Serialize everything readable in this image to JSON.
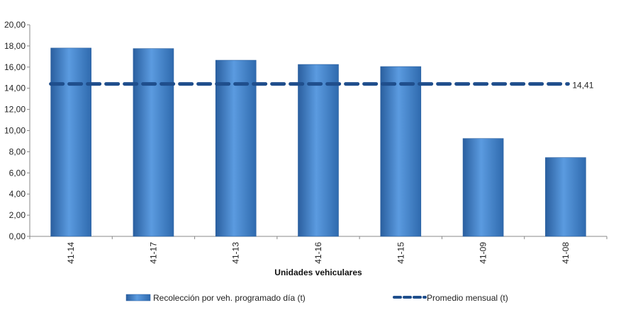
{
  "chart_data": {
    "type": "bar",
    "categories": [
      "41-14",
      "41-17",
      "41-13",
      "41-16",
      "41-15",
      "41-09",
      "41-08"
    ],
    "series": [
      {
        "name": "Recolección por veh. programado día (t)",
        "type": "bar",
        "values": [
          17.8,
          17.75,
          16.65,
          16.25,
          16.05,
          9.25,
          7.45
        ],
        "color": "#4a86c8"
      },
      {
        "name": "Promedio mensual (t)",
        "type": "line-dashed",
        "value": 14.41,
        "label": "14,41",
        "color": "#1f4e8c"
      }
    ],
    "xlabel": "Unidades vehiculares",
    "ylabel": "",
    "ylim": [
      0,
      20
    ],
    "yticks": [
      "0,00",
      "2,00",
      "4,00",
      "6,00",
      "8,00",
      "10,00",
      "12,00",
      "14,00",
      "16,00",
      "18,00",
      "20,00"
    ],
    "legend_position": "bottom",
    "grid": false
  }
}
